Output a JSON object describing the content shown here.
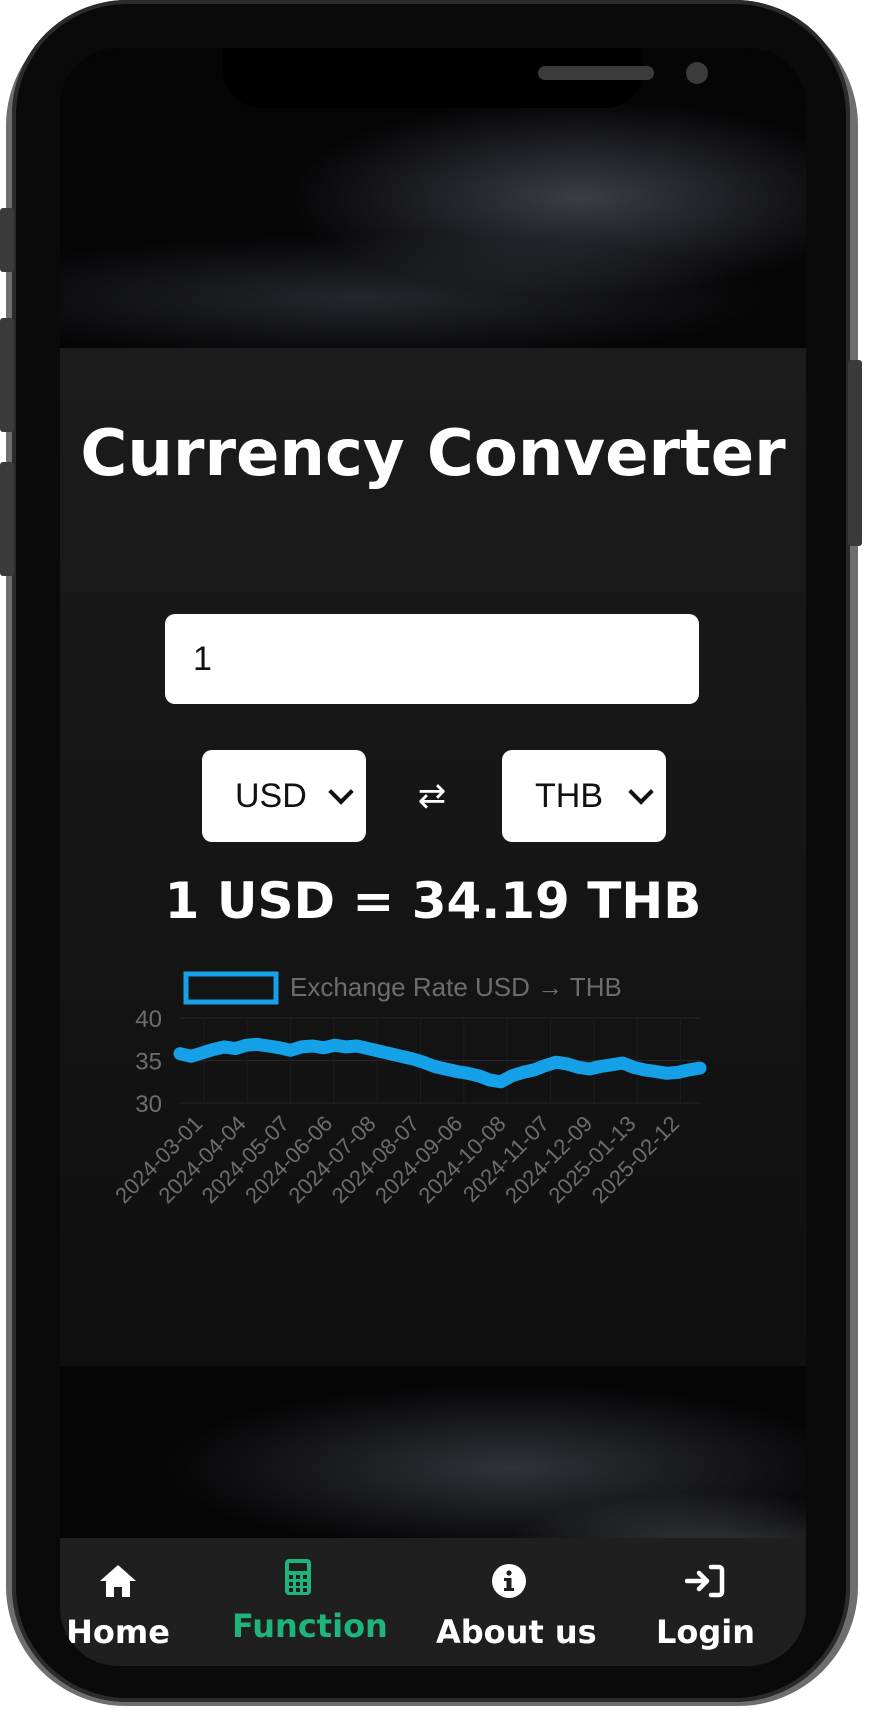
{
  "app": {
    "title": "Currency Converter"
  },
  "converter": {
    "amount_value": "1",
    "from_currency": "USD",
    "to_currency": "THB",
    "swap_glyph": "⇄",
    "result_text": "1 USD = 34.19 THB"
  },
  "chart_data": {
    "type": "line",
    "legend": [
      "Exchange Rate USD → THB"
    ],
    "series": [
      {
        "name": "Exchange Rate USD → THB",
        "values": [
          35.8,
          35.5,
          35.9,
          36.3,
          36.6,
          36.4,
          36.8,
          36.9,
          36.7,
          36.5,
          36.2,
          36.6,
          36.7,
          36.5,
          36.8,
          36.6,
          36.7,
          36.4,
          36.1,
          35.8,
          35.5,
          35.2,
          34.8,
          34.3,
          34.0,
          33.7,
          33.5,
          33.2,
          32.7,
          32.5,
          33.2,
          33.6,
          33.9,
          34.4,
          34.8,
          34.6,
          34.2,
          34.0,
          34.3,
          34.5,
          34.7,
          34.2,
          33.9,
          33.7,
          33.5,
          33.6,
          33.9,
          34.1
        ]
      }
    ],
    "x_ticks": [
      "2024-03-01",
      "2024-04-04",
      "2024-05-07",
      "2024-06-06",
      "2024-07-08",
      "2024-08-07",
      "2024-09-06",
      "2024-10-08",
      "2024-11-07",
      "2024-12-09",
      "2025-01-13",
      "2025-02-12"
    ],
    "y_ticks": [
      "40",
      "35",
      "30"
    ],
    "ylim": [
      30,
      40
    ],
    "line_color": "#14a1e8",
    "grid": true,
    "legend_position": "top"
  },
  "nav": {
    "items": [
      {
        "label": "Home",
        "icon": "home-icon"
      },
      {
        "label": "Function",
        "icon": "calculator-icon"
      },
      {
        "label": "About us",
        "icon": "info-icon"
      },
      {
        "label": "Login",
        "icon": "login-icon"
      }
    ],
    "active_color": "#1fb47c"
  }
}
